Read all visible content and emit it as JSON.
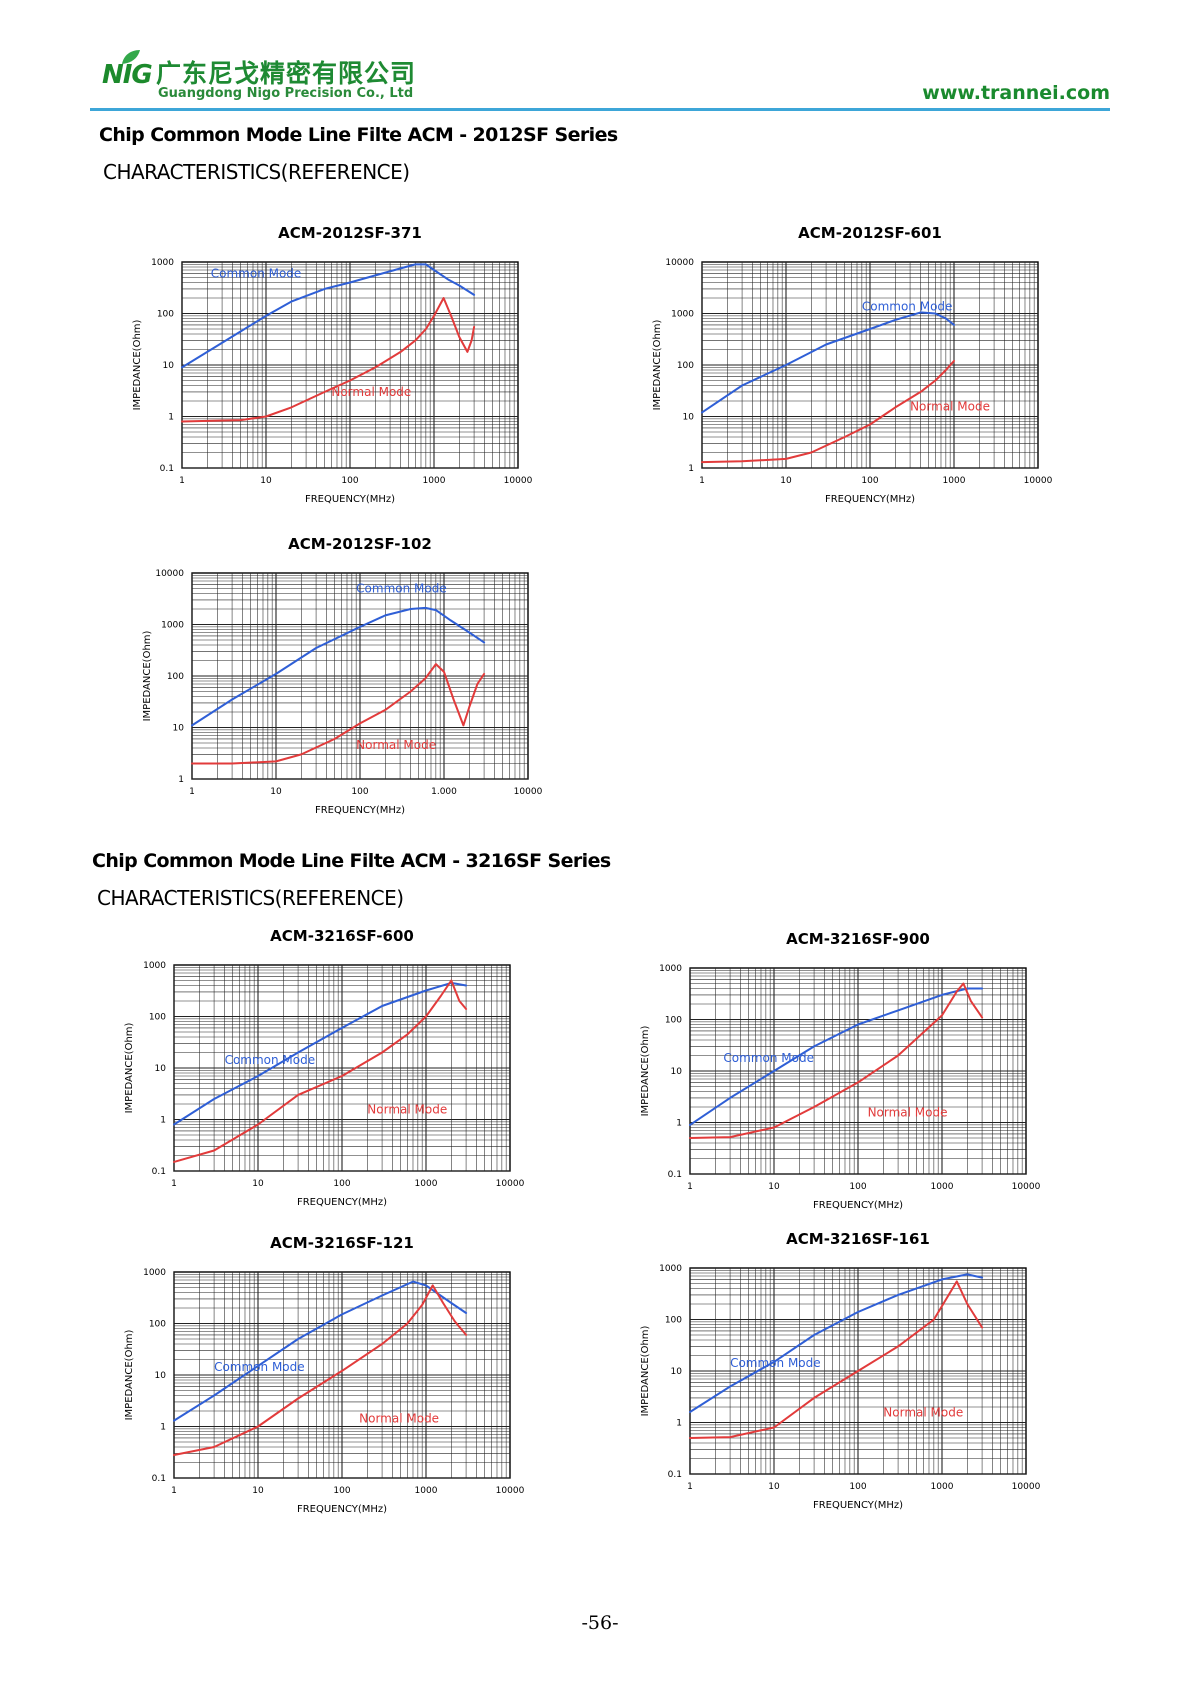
{
  "header": {
    "logo_text": "NIG",
    "company_cn": "广东尼戈精密有限公司",
    "company_en": "Guangdong Nigo Precision Co., Ltd",
    "website": "www.trannei.com"
  },
  "sections": [
    {
      "title": "Chip Common Mode Line Filte ACM - 2012SF Series",
      "subtitle": "CHARACTERISTICS(REFERENCE)"
    },
    {
      "title": "Chip Common Mode Line Filte ACM - 3216SF Series",
      "subtitle": "CHARACTERISTICS(REFERENCE)"
    }
  ],
  "page_number": "-56-",
  "colors": {
    "common_mode": "#2f5fd6",
    "normal_mode": "#e23b3b",
    "grid": "#000000",
    "brand_green": "#1e8a33",
    "rule_blue": "#3da6d8"
  },
  "chart_data": [
    {
      "type": "line",
      "title": "ACM-2012SF-371",
      "xlabel": "FREQUENCY(MHz)",
      "ylabel": "IMPEDANCE(Ohm)",
      "x_scale": "log",
      "y_scale": "log",
      "xlim": [
        1,
        10000
      ],
      "ylim": [
        0.1,
        1000
      ],
      "x_ticks": [
        "1",
        "10",
        "100",
        "1000",
        "10000"
      ],
      "y_ticks": [
        "0.1",
        "1",
        "10",
        "100",
        "1000"
      ],
      "grid": true,
      "annotations": [
        {
          "text": "Common Mode",
          "x": 2.2,
          "y": 500,
          "series": 0
        },
        {
          "text": "Normal Mode",
          "x": 60,
          "y": 2.5,
          "series": 1
        }
      ],
      "series": [
        {
          "name": "Common Mode",
          "x": [
            1,
            2,
            5,
            10,
            20,
            50,
            100,
            200,
            400,
            600,
            800,
            1000,
            1500,
            2000,
            3000
          ],
          "y": [
            9,
            18,
            45,
            90,
            170,
            300,
            400,
            550,
            750,
            900,
            900,
            700,
            450,
            350,
            230
          ]
        },
        {
          "name": "Normal Mode",
          "x": [
            1,
            2,
            5,
            10,
            20,
            50,
            100,
            200,
            400,
            600,
            800,
            1000,
            1300,
            1600,
            2000,
            2500,
            2800,
            3000
          ],
          "y": [
            0.8,
            0.82,
            0.85,
            1,
            1.5,
            3,
            5,
            9,
            18,
            30,
            50,
            90,
            200,
            90,
            35,
            18,
            30,
            55
          ]
        }
      ]
    },
    {
      "type": "line",
      "title": "ACM-2012SF-601",
      "xlabel": "FREQUENCY(MHz)",
      "ylabel": "IMPEDANCE(Ohm)",
      "x_scale": "log",
      "y_scale": "log",
      "xlim": [
        1,
        10000
      ],
      "ylim": [
        1,
        10000
      ],
      "x_ticks": [
        "1",
        "10",
        "100",
        "1000",
        "10000"
      ],
      "y_ticks": [
        "1",
        "10",
        "100",
        "1000",
        "10000"
      ],
      "grid": true,
      "annotations": [
        {
          "text": "Common Mode",
          "x": 80,
          "y": 1150,
          "series": 0
        },
        {
          "text": "Normal Mode",
          "x": 300,
          "y": 13,
          "series": 1
        }
      ],
      "series": [
        {
          "name": "Common Mode",
          "x": [
            1,
            3,
            10,
            30,
            100,
            200,
            400,
            600,
            800,
            1000
          ],
          "y": [
            12,
            40,
            100,
            250,
            500,
            750,
            1050,
            1000,
            800,
            600
          ]
        },
        {
          "name": "Normal Mode",
          "x": [
            1,
            3,
            10,
            20,
            50,
            100,
            200,
            400,
            600,
            800,
            1000
          ],
          "y": [
            1.3,
            1.35,
            1.5,
            2,
            4,
            7,
            15,
            30,
            50,
            80,
            120
          ]
        }
      ]
    },
    {
      "type": "line",
      "title": "ACM-2012SF-102",
      "xlabel": "FREQUENCY(MHz)",
      "ylabel": "IMPEDANCE(Ohm)",
      "x_scale": "log",
      "y_scale": "log",
      "xlim": [
        1,
        10000
      ],
      "ylim": [
        1,
        10000
      ],
      "x_ticks": [
        "1",
        "10",
        "100",
        "1.000",
        "10000"
      ],
      "y_ticks": [
        "1",
        "10",
        "100",
        "1000",
        "10000"
      ],
      "grid": true,
      "annotations": [
        {
          "text": "Common Mode",
          "x": 90,
          "y": 4200,
          "series": 0
        },
        {
          "text": "Normal Mode",
          "x": 90,
          "y": 3.8,
          "series": 1
        }
      ],
      "series": [
        {
          "name": "Common Mode",
          "x": [
            1,
            3,
            10,
            30,
            100,
            200,
            400,
            600,
            800,
            1200,
            2000,
            3000
          ],
          "y": [
            11,
            35,
            110,
            350,
            900,
            1500,
            2000,
            2100,
            1900,
            1200,
            700,
            450
          ]
        },
        {
          "name": "Normal Mode",
          "x": [
            1,
            3,
            10,
            20,
            50,
            100,
            200,
            400,
            600,
            800,
            1000,
            1300,
            1700,
            2000,
            2500,
            3000
          ],
          "y": [
            2,
            2,
            2.2,
            3,
            6,
            12,
            22,
            50,
            90,
            170,
            120,
            35,
            11,
            25,
            70,
            110
          ]
        }
      ]
    },
    {
      "type": "line",
      "title": "ACM-3216SF-600",
      "xlabel": "FREQUENCY(MHz)",
      "ylabel": "IMPEDANCE(Ohm)",
      "x_scale": "log",
      "y_scale": "log",
      "xlim": [
        1,
        10000
      ],
      "ylim": [
        0.1,
        1000
      ],
      "x_ticks": [
        "1",
        "10",
        "100",
        "1000",
        "10000"
      ],
      "y_ticks": [
        "0.1",
        "1",
        "10",
        "100",
        "1000"
      ],
      "grid": true,
      "annotations": [
        {
          "text": "Common Mode",
          "x": 4,
          "y": 12,
          "series": 0
        },
        {
          "text": "Normal Mode",
          "x": 200,
          "y": 1.3,
          "series": 1
        }
      ],
      "series": [
        {
          "name": "Common Mode",
          "x": [
            1,
            3,
            10,
            30,
            100,
            300,
            1000,
            2000,
            3000
          ],
          "y": [
            0.8,
            2.5,
            7,
            20,
            60,
            160,
            320,
            450,
            400
          ]
        },
        {
          "name": "Normal Mode",
          "x": [
            1,
            3,
            10,
            30,
            100,
            300,
            600,
            1000,
            1500,
            2000,
            2500,
            3000
          ],
          "y": [
            0.15,
            0.25,
            0.8,
            3,
            7,
            20,
            45,
            100,
            250,
            500,
            200,
            140
          ]
        }
      ]
    },
    {
      "type": "line",
      "title": "ACM-3216SF-900",
      "xlabel": "FREQUENCY(MHz)",
      "ylabel": "IMPEDANCE(Ohm)",
      "x_scale": "log",
      "y_scale": "log",
      "xlim": [
        1,
        10000
      ],
      "ylim": [
        0.1,
        1000
      ],
      "x_ticks": [
        "1",
        "10",
        "100",
        "1000",
        "10000"
      ],
      "y_ticks": [
        "0.1",
        "1",
        "10",
        "100",
        "1000"
      ],
      "grid": true,
      "annotations": [
        {
          "text": "Common Mode",
          "x": 2.5,
          "y": 15,
          "series": 0
        },
        {
          "text": "Normal Mode",
          "x": 130,
          "y": 1.3,
          "series": 1
        }
      ],
      "series": [
        {
          "name": "Common Mode",
          "x": [
            1,
            3,
            10,
            30,
            100,
            300,
            1000,
            2000,
            3000
          ],
          "y": [
            0.9,
            3,
            10,
            30,
            80,
            150,
            300,
            400,
            400
          ]
        },
        {
          "name": "Normal Mode",
          "x": [
            1,
            3,
            10,
            30,
            100,
            300,
            1000,
            1500,
            1800,
            2200,
            3000
          ],
          "y": [
            0.5,
            0.52,
            0.8,
            2,
            6,
            20,
            120,
            350,
            500,
            230,
            110
          ]
        }
      ]
    },
    {
      "type": "line",
      "title": "ACM-3216SF-121",
      "xlabel": "FREQUENCY(MHz)",
      "ylabel": "IMPEDANCE(Ohm)",
      "x_scale": "log",
      "y_scale": "log",
      "xlim": [
        1,
        10000
      ],
      "ylim": [
        0.1,
        1000
      ],
      "x_ticks": [
        "1",
        "10",
        "100",
        "1000",
        "10000"
      ],
      "y_ticks": [
        "0.1",
        "1",
        "10",
        "100",
        "1000"
      ],
      "grid": true,
      "annotations": [
        {
          "text": "Common Mode",
          "x": 3,
          "y": 12,
          "series": 0
        },
        {
          "text": "Normal Mode",
          "x": 160,
          "y": 1.2,
          "series": 1
        }
      ],
      "series": [
        {
          "name": "Common Mode",
          "x": [
            1,
            3,
            10,
            30,
            100,
            300,
            700,
            1000,
            2000,
            3000
          ],
          "y": [
            1.3,
            4,
            15,
            50,
            150,
            350,
            650,
            550,
            250,
            160
          ]
        },
        {
          "name": "Normal Mode",
          "x": [
            1,
            3,
            10,
            30,
            100,
            300,
            600,
            900,
            1200,
            1600,
            2200,
            3000
          ],
          "y": [
            0.28,
            0.4,
            1,
            3.5,
            12,
            40,
            100,
            230,
            550,
            250,
            110,
            60
          ]
        }
      ]
    },
    {
      "type": "line",
      "title": "ACM-3216SF-161",
      "xlabel": "FREQUENCY(MHz)",
      "ylabel": "IMPEDANCE(Ohm)",
      "x_scale": "log",
      "y_scale": "log",
      "xlim": [
        1,
        10000
      ],
      "ylim": [
        0.1,
        1000
      ],
      "x_ticks": [
        "1",
        "10",
        "100",
        "1000",
        "10000"
      ],
      "y_ticks": [
        "0.1",
        "1",
        "10",
        "100",
        "1000"
      ],
      "grid": true,
      "annotations": [
        {
          "text": "Common Mode",
          "x": 3,
          "y": 12,
          "series": 0
        },
        {
          "text": "Normal Mode",
          "x": 200,
          "y": 1.3,
          "series": 1
        }
      ],
      "series": [
        {
          "name": "Common Mode",
          "x": [
            1,
            3,
            10,
            30,
            100,
            300,
            1000,
            2000,
            3000
          ],
          "y": [
            1.6,
            5,
            15,
            50,
            140,
            300,
            600,
            750,
            650
          ]
        },
        {
          "name": "Normal Mode",
          "x": [
            1,
            3,
            10,
            30,
            100,
            300,
            800,
            1200,
            1500,
            2000,
            3000
          ],
          "y": [
            0.5,
            0.52,
            0.8,
            3,
            10,
            30,
            100,
            300,
            550,
            200,
            70
          ]
        }
      ]
    }
  ]
}
